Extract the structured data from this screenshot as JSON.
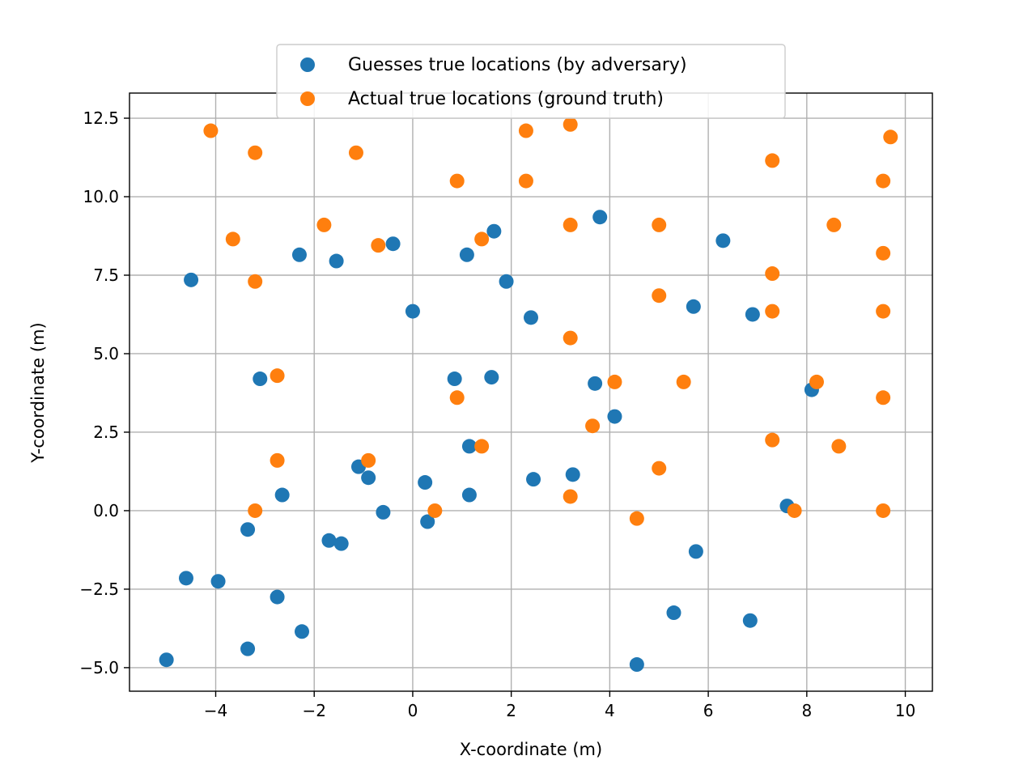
{
  "chart_data": {
    "type": "scatter",
    "xlabel": "X-coordinate (m)",
    "ylabel": "Y-coordinate (m)",
    "xlim": [
      -5.75,
      10.55
    ],
    "ylim": [
      -5.75,
      13.3
    ],
    "grid": true,
    "legend_position": "top-center",
    "x_ticks": [
      -4,
      -2,
      0,
      2,
      4,
      6,
      8,
      10
    ],
    "x_tick_labels": [
      "−4",
      "−2",
      "0",
      "2",
      "4",
      "6",
      "8",
      "10"
    ],
    "y_ticks": [
      -5.0,
      -2.5,
      0.0,
      2.5,
      5.0,
      7.5,
      10.0,
      12.5
    ],
    "y_tick_labels": [
      "−5.0",
      "−2.5",
      "0.0",
      "2.5",
      "5.0",
      "7.5",
      "10.0",
      "12.5"
    ],
    "series": [
      {
        "name": "Guesses true locations (by adversary)",
        "color": "#1f77b4",
        "points": [
          [
            -4.5,
            7.35
          ],
          [
            -2.3,
            8.15
          ],
          [
            -1.55,
            7.95
          ],
          [
            -0.4,
            8.5
          ],
          [
            1.1,
            8.15
          ],
          [
            1.65,
            8.9
          ],
          [
            3.8,
            9.35
          ],
          [
            1.9,
            7.3
          ],
          [
            0.0,
            6.35
          ],
          [
            2.4,
            6.15
          ],
          [
            6.3,
            8.6
          ],
          [
            5.7,
            6.5
          ],
          [
            6.9,
            6.25
          ],
          [
            -3.1,
            4.2
          ],
          [
            0.85,
            4.2
          ],
          [
            1.6,
            4.25
          ],
          [
            3.7,
            4.05
          ],
          [
            4.1,
            3.0
          ],
          [
            8.1,
            3.85
          ],
          [
            1.15,
            2.05
          ],
          [
            -1.1,
            1.4
          ],
          [
            -0.9,
            1.05
          ],
          [
            0.25,
            0.9
          ],
          [
            3.25,
            1.15
          ],
          [
            2.45,
            1.0
          ],
          [
            -2.65,
            0.5
          ],
          [
            1.15,
            0.5
          ],
          [
            -0.6,
            -0.05
          ],
          [
            0.3,
            -0.35
          ],
          [
            7.6,
            0.15
          ],
          [
            -3.35,
            -0.6
          ],
          [
            -1.7,
            -0.95
          ],
          [
            -1.45,
            -1.05
          ],
          [
            5.75,
            -1.3
          ],
          [
            -4.6,
            -2.15
          ],
          [
            -3.95,
            -2.25
          ],
          [
            -2.75,
            -2.75
          ],
          [
            5.3,
            -3.25
          ],
          [
            6.85,
            -3.5
          ],
          [
            -2.25,
            -3.85
          ],
          [
            -3.35,
            -4.4
          ],
          [
            -5.0,
            -4.75
          ],
          [
            4.55,
            -4.9
          ]
        ]
      },
      {
        "name": "Actual true locations (ground truth)",
        "color": "#ff7f0e",
        "points": [
          [
            -4.1,
            12.1
          ],
          [
            -3.2,
            11.4
          ],
          [
            -1.15,
            11.4
          ],
          [
            0.9,
            10.5
          ],
          [
            2.3,
            12.1
          ],
          [
            2.3,
            10.5
          ],
          [
            3.2,
            12.3
          ],
          [
            7.3,
            11.15
          ],
          [
            9.7,
            11.9
          ],
          [
            9.55,
            10.5
          ],
          [
            -3.65,
            8.65
          ],
          [
            -1.8,
            9.1
          ],
          [
            -0.7,
            8.45
          ],
          [
            1.4,
            8.65
          ],
          [
            3.2,
            9.1
          ],
          [
            5.0,
            9.1
          ],
          [
            8.55,
            9.1
          ],
          [
            9.55,
            8.2
          ],
          [
            -3.2,
            7.3
          ],
          [
            7.3,
            7.55
          ],
          [
            5.0,
            6.85
          ],
          [
            7.3,
            6.35
          ],
          [
            9.55,
            6.35
          ],
          [
            3.2,
            5.5
          ],
          [
            -2.75,
            4.3
          ],
          [
            0.9,
            3.6
          ],
          [
            4.1,
            4.1
          ],
          [
            5.5,
            4.1
          ],
          [
            8.2,
            4.1
          ],
          [
            9.55,
            3.6
          ],
          [
            3.65,
            2.7
          ],
          [
            1.4,
            2.05
          ],
          [
            7.3,
            2.25
          ],
          [
            8.65,
            2.05
          ],
          [
            -2.75,
            1.6
          ],
          [
            -0.9,
            1.6
          ],
          [
            5.0,
            1.35
          ],
          [
            -3.2,
            0.0
          ],
          [
            0.45,
            0.0
          ],
          [
            3.2,
            0.45
          ],
          [
            7.75,
            0.0
          ],
          [
            9.55,
            0.0
          ],
          [
            4.55,
            -0.25
          ]
        ]
      }
    ]
  }
}
